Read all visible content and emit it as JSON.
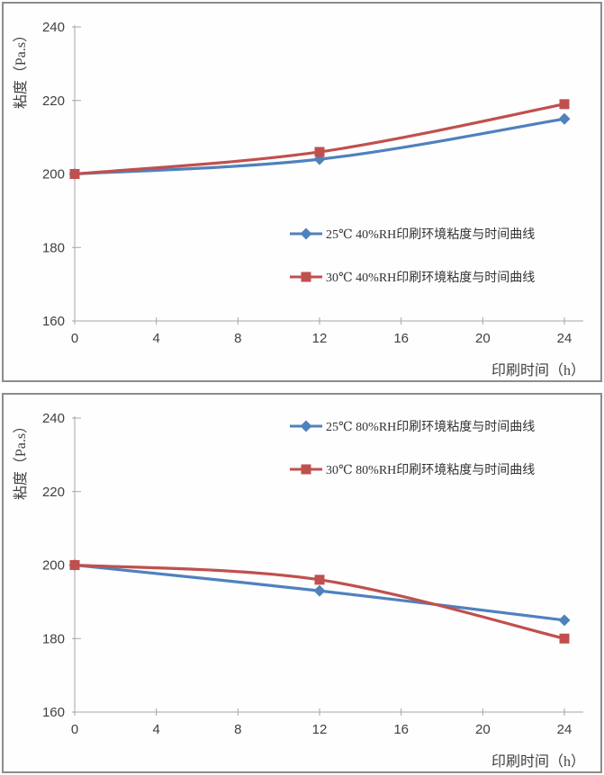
{
  "page": {
    "background": "#ffffff",
    "panel_border_color": "#8c8c8c",
    "axis_color": "#a6a6a6",
    "text_color": "#404040"
  },
  "chart_data": [
    {
      "type": "line",
      "title": "",
      "xlabel": "印刷时间（h）",
      "ylabel": "粘度（Pa.s）",
      "x": [
        0,
        12,
        24
      ],
      "xlim": [
        0,
        24
      ],
      "ylim": [
        160,
        240
      ],
      "xticks": [
        0,
        4,
        8,
        12,
        16,
        20,
        24
      ],
      "yticks": [
        160,
        180,
        200,
        220,
        240
      ],
      "grid": false,
      "legend_position": "middle-right",
      "series": [
        {
          "name": "25℃ 40%RH印刷环境粘度与时间曲线",
          "color": "#4F81BD",
          "marker": "diamond",
          "values": [
            200,
            204,
            215
          ]
        },
        {
          "name": "30℃ 40%RH印刷环境粘度与时间曲线",
          "color": "#C0504D",
          "marker": "square",
          "values": [
            200,
            206,
            219
          ]
        }
      ]
    },
    {
      "type": "line",
      "title": "",
      "xlabel": "印刷时间（h）",
      "ylabel": "粘度（Pa.s）",
      "x": [
        0,
        12,
        24
      ],
      "xlim": [
        0,
        24
      ],
      "ylim": [
        160,
        240
      ],
      "xticks": [
        0,
        4,
        8,
        12,
        16,
        20,
        24
      ],
      "yticks": [
        160,
        180,
        200,
        220,
        240
      ],
      "grid": false,
      "legend_position": "top-right",
      "series": [
        {
          "name": "25℃ 80%RH印刷环境粘度与时间曲线",
          "color": "#4F81BD",
          "marker": "diamond",
          "values": [
            200,
            193,
            185
          ]
        },
        {
          "name": "30℃ 80%RH印刷环境粘度与时间曲线",
          "color": "#C0504D",
          "marker": "square",
          "values": [
            200,
            196,
            180
          ]
        }
      ]
    }
  ]
}
